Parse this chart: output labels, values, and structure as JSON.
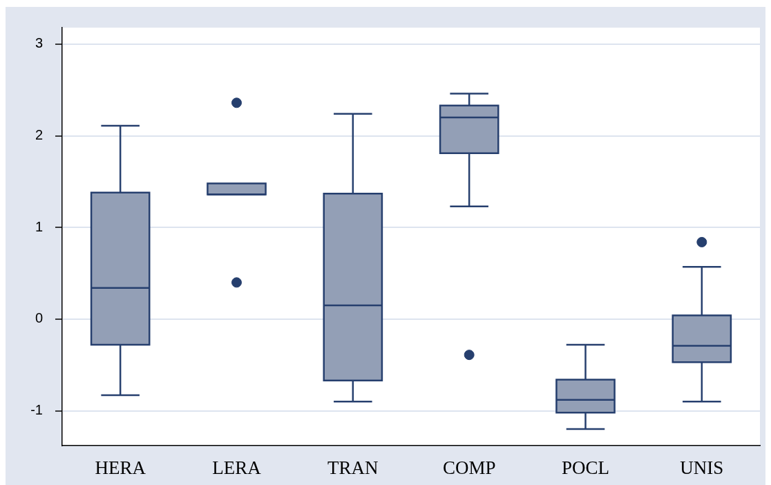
{
  "chart_data": {
    "type": "box",
    "categories": [
      "HERA",
      "LERA",
      "TRAN",
      "COMP",
      "POCL",
      "UNIS"
    ],
    "boxes": [
      {
        "low": -0.83,
        "q1": -0.28,
        "median": 0.34,
        "q3": 1.38,
        "high": 2.11
      },
      {
        "low": 1.36,
        "q1": 1.36,
        "median": 1.36,
        "q3": 1.48,
        "high": 1.48,
        "outliers": [
          2.36,
          0.4
        ]
      },
      {
        "low": -0.9,
        "q1": -0.67,
        "median": 0.15,
        "q3": 1.37,
        "high": 2.24
      },
      {
        "low": 1.23,
        "q1": 1.81,
        "median": 2.2,
        "q3": 2.33,
        "high": 2.46,
        "outliers": [
          -0.39
        ]
      },
      {
        "low": -1.2,
        "q1": -1.02,
        "median": -0.88,
        "q3": -0.66,
        "high": -0.28
      },
      {
        "low": -0.9,
        "q1": -0.47,
        "median": -0.29,
        "q3": 0.04,
        "high": 0.57,
        "outliers": [
          0.84
        ]
      }
    ],
    "color": "#939fb6",
    "ylim": [
      -1.38,
      3.18
    ],
    "yticks": [
      -1,
      0,
      1,
      2,
      3
    ],
    "grid": "y",
    "legend": false
  }
}
